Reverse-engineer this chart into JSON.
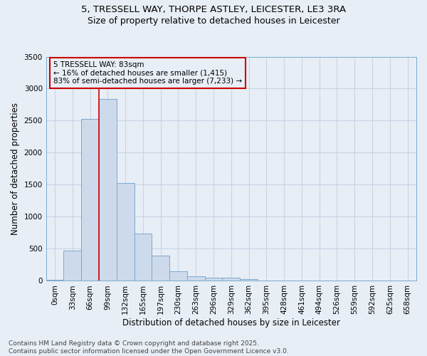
{
  "title_line1": "5, TRESSELL WAY, THORPE ASTLEY, LEICESTER, LE3 3RA",
  "title_line2": "Size of property relative to detached houses in Leicester",
  "xlabel": "Distribution of detached houses by size in Leicester",
  "ylabel": "Number of detached properties",
  "bar_values": [
    20,
    470,
    2530,
    2840,
    1530,
    740,
    390,
    155,
    75,
    55,
    45,
    30,
    10,
    5,
    3,
    2,
    1,
    1,
    1,
    0,
    0
  ],
  "bar_labels": [
    "0sqm",
    "33sqm",
    "66sqm",
    "99sqm",
    "132sqm",
    "165sqm",
    "197sqm",
    "230sqm",
    "263sqm",
    "296sqm",
    "329sqm",
    "362sqm",
    "395sqm",
    "428sqm",
    "461sqm",
    "494sqm",
    "526sqm",
    "559sqm",
    "592sqm",
    "625sqm",
    "658sqm"
  ],
  "bar_color": "#cddaeb",
  "bar_edge_color": "#7aaacf",
  "grid_color": "#c8d4e4",
  "background_color": "#e8eef6",
  "vline_x_index": 2,
  "vline_color": "#cc0000",
  "annotation_line1": "5 TRESSELL WAY: 83sqm",
  "annotation_line2": "← 16% of detached houses are smaller (1,415)",
  "annotation_line3": "83% of semi-detached houses are larger (7,233) →",
  "annotation_box_color": "#cc0000",
  "ylim": [
    0,
    3500
  ],
  "yticks": [
    0,
    500,
    1000,
    1500,
    2000,
    2500,
    3000,
    3500
  ],
  "footer_text": "Contains HM Land Registry data © Crown copyright and database right 2025.\nContains public sector information licensed under the Open Government Licence v3.0.",
  "title_fontsize": 9.5,
  "subtitle_fontsize": 9,
  "axis_label_fontsize": 8.5,
  "tick_fontsize": 7.5,
  "annotation_fontsize": 7.5,
  "footer_fontsize": 6.5
}
